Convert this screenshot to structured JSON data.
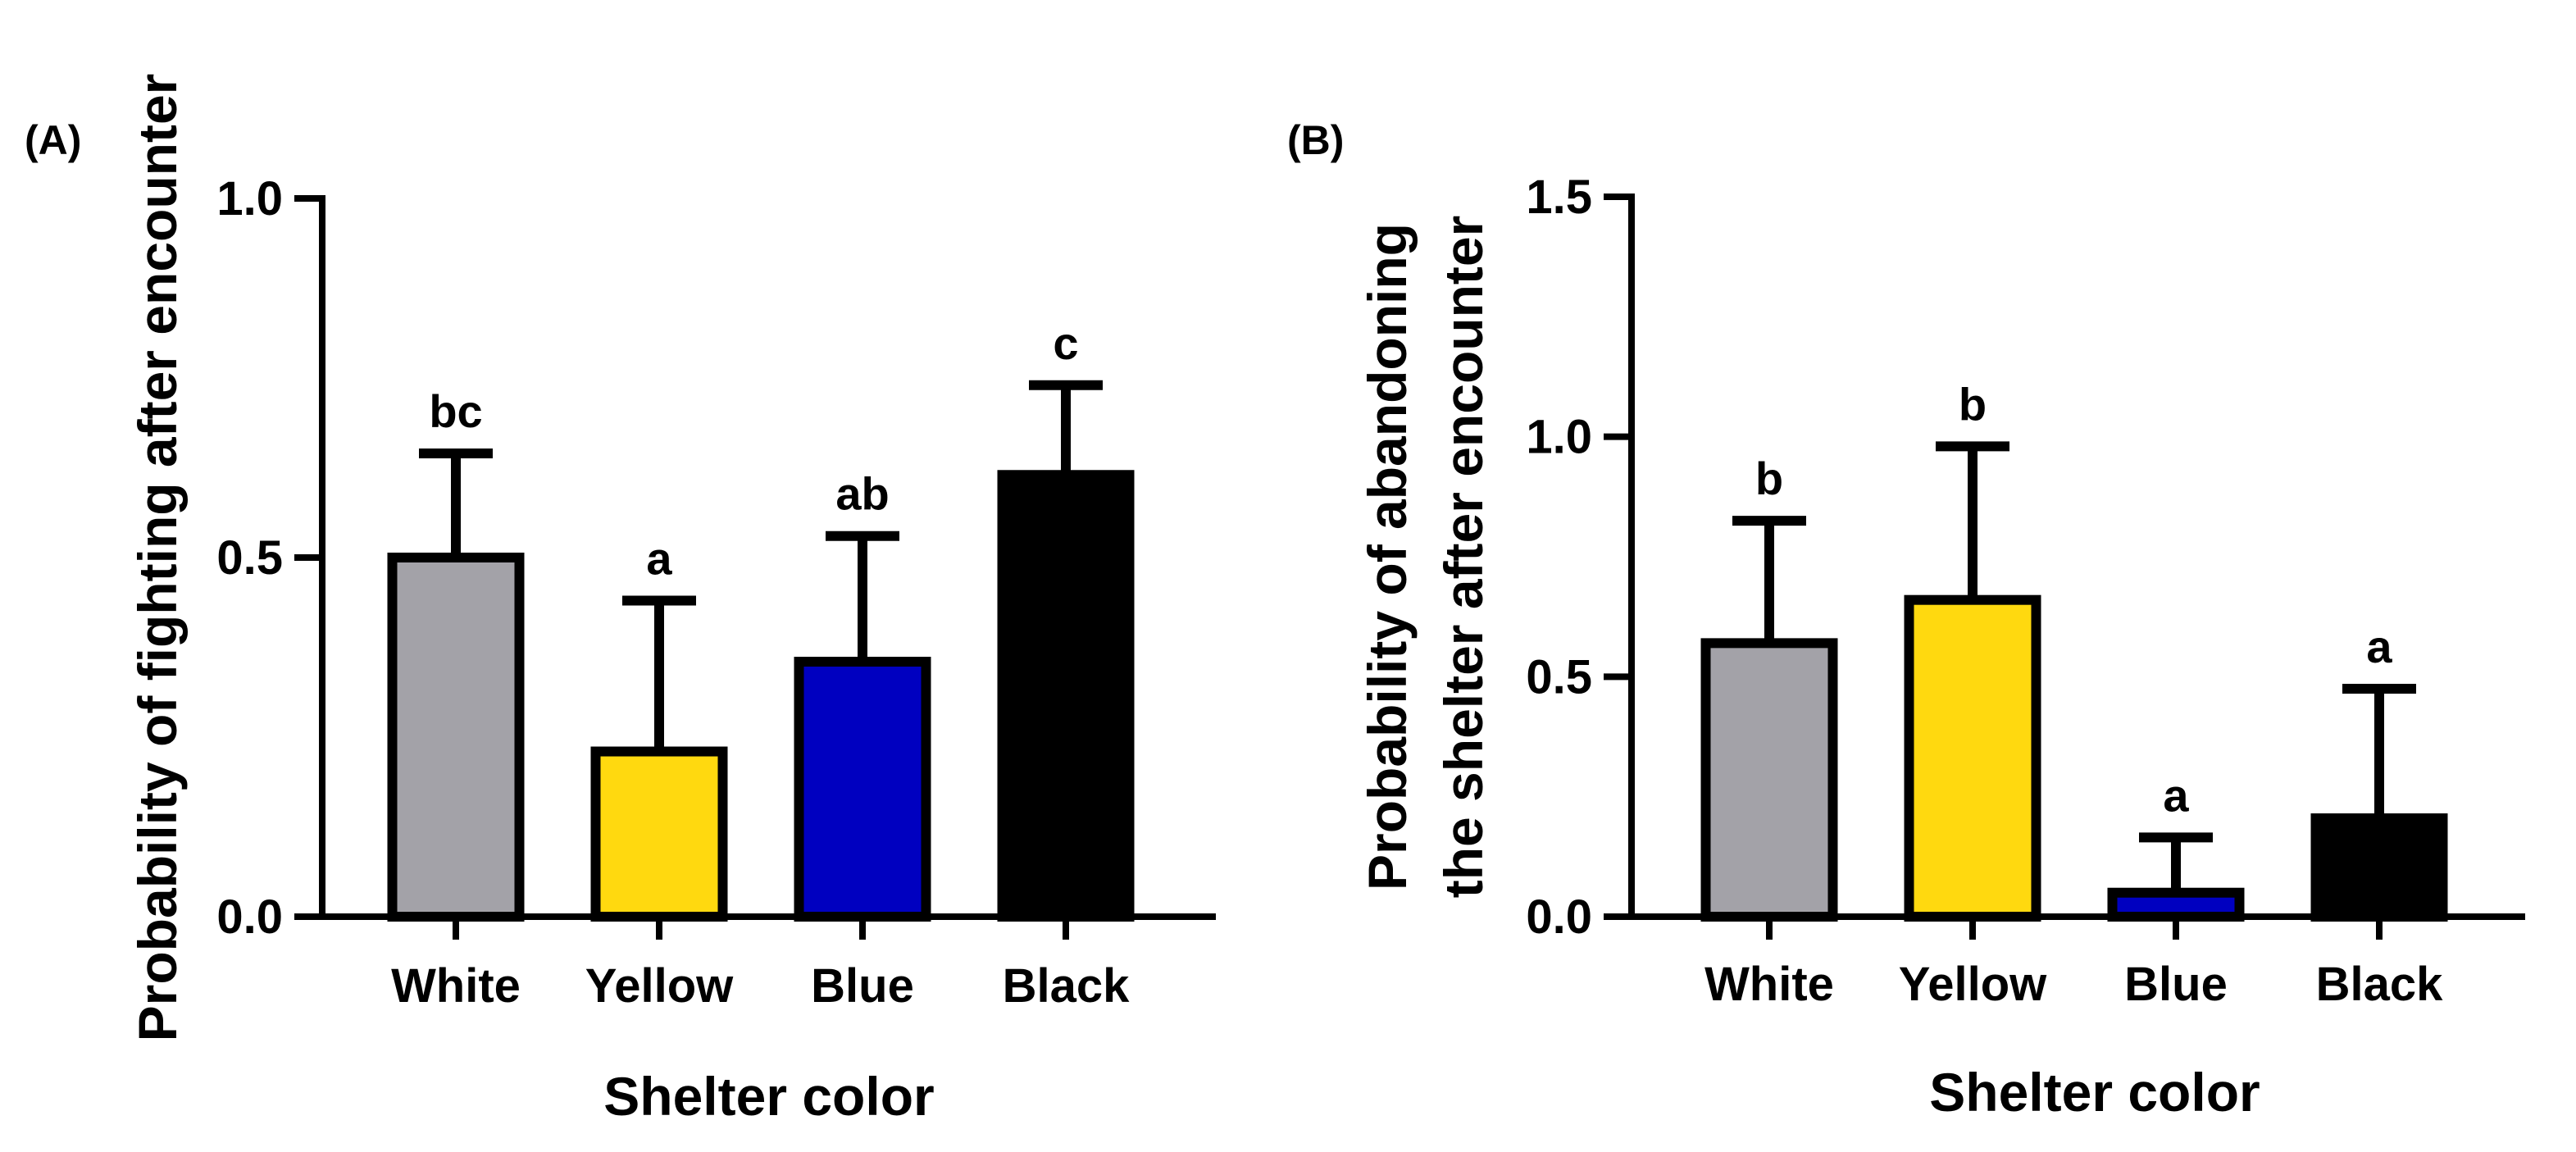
{
  "chart_data": [
    {
      "panel": "(A)",
      "type": "bar",
      "categories": [
        "White",
        "Yellow",
        "Blue",
        "Black"
      ],
      "values": [
        0.5,
        0.23,
        0.355,
        0.615
      ],
      "error_upper": [
        0.645,
        0.44,
        0.53,
        0.74
      ],
      "significance": [
        "bc",
        "a",
        "ab",
        "c"
      ],
      "colors": [
        "#a3a2a8",
        "#ffd90f",
        "#0000c0",
        "#000000"
      ],
      "ylim": [
        0,
        1.0
      ],
      "yticks": [
        0.0,
        0.5,
        1.0
      ],
      "ytick_labels": [
        "0.0",
        "0.5",
        "1.0"
      ],
      "xlabel": "Shelter color",
      "ylabel_lines": [
        "Probability of fighting after encounter"
      ]
    },
    {
      "panel": "(B)",
      "type": "bar",
      "categories": [
        "White",
        "Yellow",
        "Blue",
        "Black"
      ],
      "values": [
        0.57,
        0.66,
        0.05,
        0.205
      ],
      "error_upper": [
        0.825,
        0.98,
        0.165,
        0.475
      ],
      "significance": [
        "b",
        "b",
        "a",
        "a"
      ],
      "colors": [
        "#a3a2a8",
        "#ffd90f",
        "#0000c0",
        "#000000"
      ],
      "ylim": [
        0,
        1.5
      ],
      "yticks": [
        0.0,
        0.5,
        1.0,
        1.5
      ],
      "ytick_labels": [
        "0.0",
        "0.5",
        "1.0",
        "1.5"
      ],
      "xlabel": "Shelter color",
      "ylabel_lines": [
        "Probability of abandoning",
        "the shelter after encounter"
      ]
    }
  ]
}
